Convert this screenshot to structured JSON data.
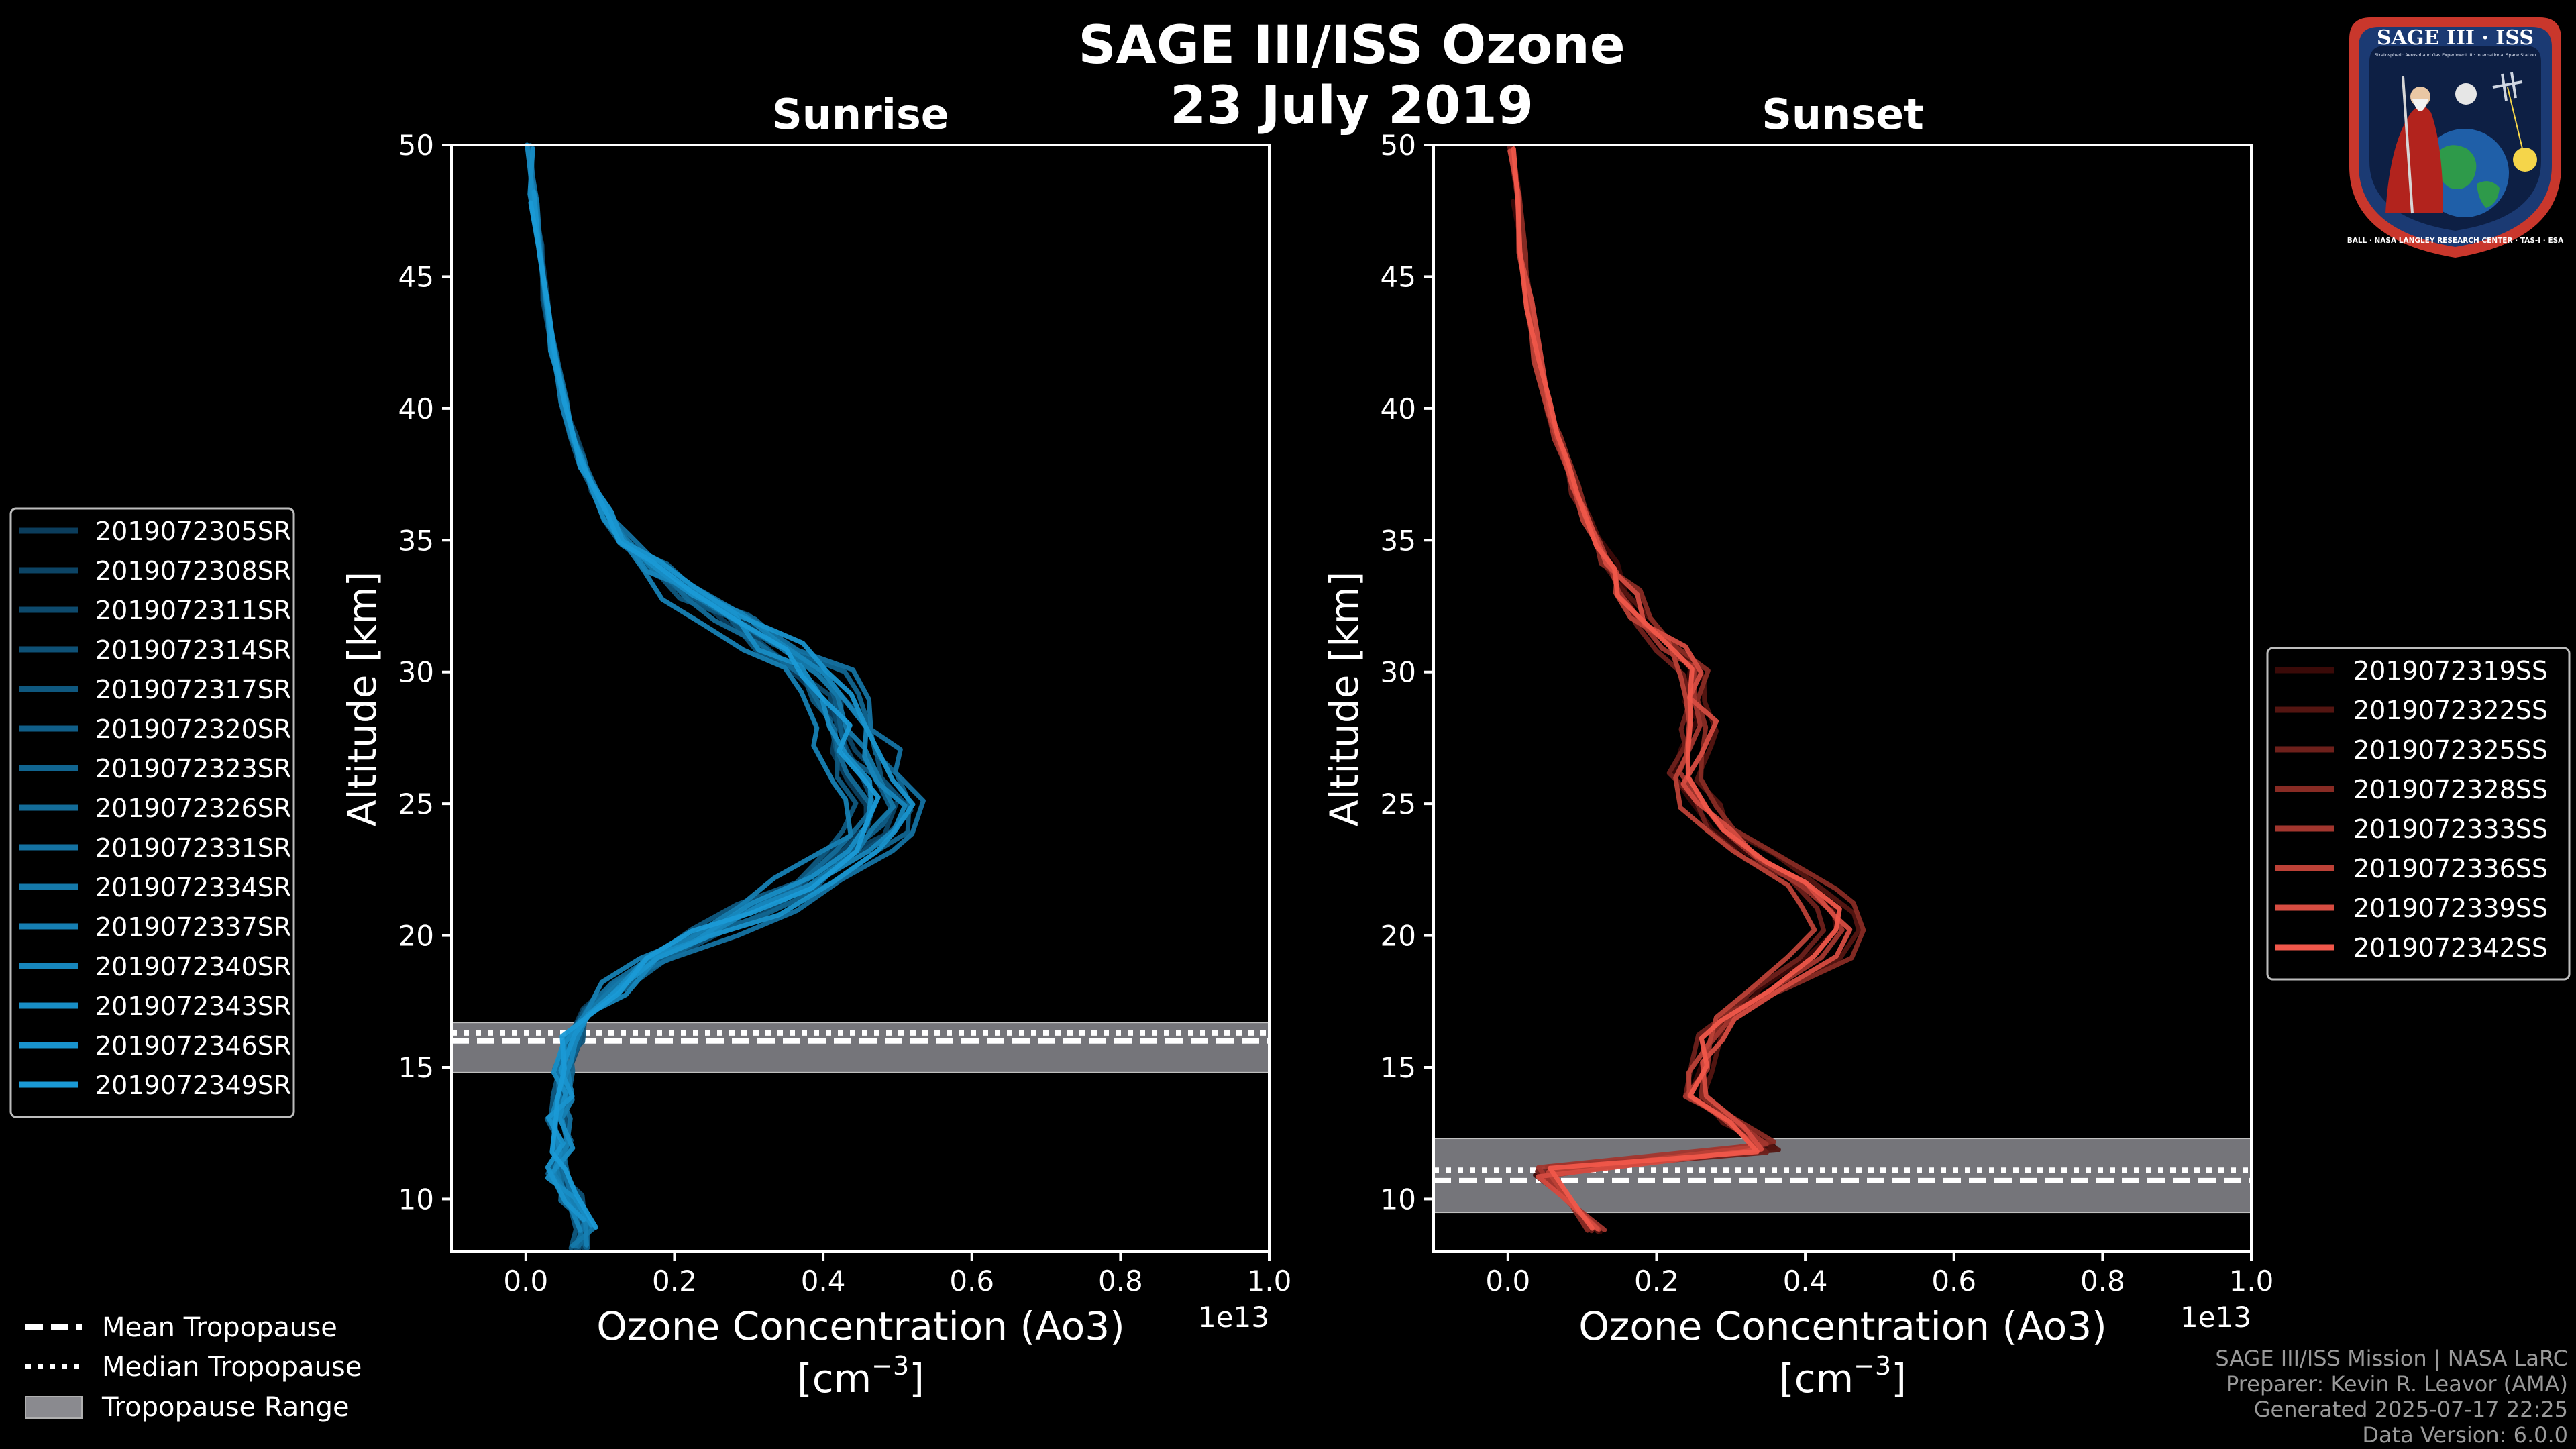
{
  "figure": {
    "title_line1": "SAGE III/ISS Ozone",
    "title_line2": "23 July 2019",
    "background": "#000000"
  },
  "badge": {
    "top_text": "SAGE III · ISS",
    "subtitle": "Stratospheric Aerosol and Gas Experiment III · International Space Station",
    "ring_text": "BALL · NASA LANGLEY RESEARCH CENTER · TAS-I · ESA"
  },
  "footer": {
    "line1": "SAGE III/ISS Mission | NASA LaRC",
    "line2": "Preparer: Kevin R. Leavor (AMA)",
    "line3": "Generated 2025-07-17 22:25",
    "line4": "Data Version: 6.0.0"
  },
  "tropo_legend": [
    {
      "label": "Mean Tropopause",
      "style": "dashed"
    },
    {
      "label": "Median Tropopause",
      "style": "dotted"
    },
    {
      "label": "Tropopause Range",
      "style": "patch"
    }
  ],
  "chart_data": [
    {
      "type": "line",
      "title": "Sunrise",
      "xlabel": "Ozone Concentration (Ao3)",
      "xunit_label": "[cm",
      "xunit_exp": "−3",
      "xunit_close": "]",
      "ylabel": "Altitude [km]",
      "xlim": [
        -0.1,
        1.0
      ],
      "ylim": [
        8,
        50
      ],
      "xticks": [
        0.0,
        0.2,
        0.4,
        0.6,
        0.8,
        1.0
      ],
      "xtick_labels": [
        "0.0",
        "0.2",
        "0.4",
        "0.6",
        "0.8",
        "1.0"
      ],
      "yticks": [
        10,
        15,
        20,
        25,
        30,
        35,
        40,
        45,
        50
      ],
      "ytick_labels": [
        "10",
        "15",
        "20",
        "25",
        "30",
        "35",
        "40",
        "45",
        "50"
      ],
      "offset_text": "1e13",
      "color_dark": "#0b3d5c",
      "color_light": "#1a9ad6",
      "tropopause": {
        "mean": 16.0,
        "median": 16.3,
        "range": [
          14.8,
          16.7
        ]
      },
      "base_profile": [
        [
          8,
          0.07
        ],
        [
          9,
          0.08
        ],
        [
          10,
          0.06
        ],
        [
          11,
          0.04
        ],
        [
          12,
          0.05
        ],
        [
          13,
          0.04
        ],
        [
          14,
          0.05
        ],
        [
          15,
          0.05
        ],
        [
          16,
          0.06
        ],
        [
          17,
          0.08
        ],
        [
          18,
          0.12
        ],
        [
          19,
          0.17
        ],
        [
          20,
          0.24
        ],
        [
          21,
          0.31
        ],
        [
          22,
          0.38
        ],
        [
          23,
          0.44
        ],
        [
          24,
          0.47
        ],
        [
          25,
          0.48
        ],
        [
          26,
          0.46
        ],
        [
          27,
          0.44
        ],
        [
          28,
          0.43
        ],
        [
          29,
          0.42
        ],
        [
          30,
          0.39
        ],
        [
          31,
          0.34
        ],
        [
          32,
          0.28
        ],
        [
          33,
          0.22
        ],
        [
          34,
          0.17
        ],
        [
          35,
          0.13
        ],
        [
          36,
          0.11
        ],
        [
          37,
          0.09
        ],
        [
          38,
          0.075
        ],
        [
          39,
          0.063
        ],
        [
          40,
          0.053
        ],
        [
          42,
          0.038
        ],
        [
          44,
          0.027
        ],
        [
          46,
          0.018
        ],
        [
          48,
          0.01
        ],
        [
          50,
          0.005
        ]
      ],
      "series": [
        {
          "name": "2019072305SR",
          "scale": 0.96,
          "jitter": 0.012
        },
        {
          "name": "2019072308SR",
          "scale": 1.02,
          "jitter": 0.015
        },
        {
          "name": "2019072311SR",
          "scale": 0.98,
          "jitter": 0.01
        },
        {
          "name": "2019072314SR",
          "scale": 1.05,
          "jitter": 0.018
        },
        {
          "name": "2019072317SR",
          "scale": 0.93,
          "jitter": 0.012
        },
        {
          "name": "2019072320SR",
          "scale": 1.0,
          "jitter": 0.014
        },
        {
          "name": "2019072323SR",
          "scale": 1.08,
          "jitter": 0.016
        },
        {
          "name": "2019072326SR",
          "scale": 0.95,
          "jitter": 0.013
        },
        {
          "name": "2019072331SR",
          "scale": 1.12,
          "jitter": 0.02
        },
        {
          "name": "2019072334SR",
          "scale": 1.01,
          "jitter": 0.011
        },
        {
          "name": "2019072337SR",
          "scale": 0.9,
          "jitter": 0.015
        },
        {
          "name": "2019072340SR",
          "scale": 1.04,
          "jitter": 0.012
        },
        {
          "name": "2019072343SR",
          "scale": 0.97,
          "jitter": 0.017
        },
        {
          "name": "2019072346SR",
          "scale": 1.06,
          "jitter": 0.013
        },
        {
          "name": "2019072349SR",
          "scale": 0.99,
          "jitter": 0.016
        }
      ]
    },
    {
      "type": "line",
      "title": "Sunset",
      "xlabel": "Ozone Concentration (Ao3)",
      "xunit_label": "[cm",
      "xunit_exp": "−3",
      "xunit_close": "]",
      "ylabel": "Altitude [km]",
      "xlim": [
        -0.1,
        1.0
      ],
      "ylim": [
        8,
        50
      ],
      "xticks": [
        0.0,
        0.2,
        0.4,
        0.6,
        0.8,
        1.0
      ],
      "xtick_labels": [
        "0.0",
        "0.2",
        "0.4",
        "0.6",
        "0.8",
        "1.0"
      ],
      "yticks": [
        10,
        15,
        20,
        25,
        30,
        35,
        40,
        45,
        50
      ],
      "ytick_labels": [
        "10",
        "15",
        "20",
        "25",
        "30",
        "35",
        "40",
        "45",
        "50"
      ],
      "offset_text": "1e13",
      "color_dark": "#3a0a08",
      "color_light": "#f0574a",
      "tropopause": {
        "mean": 10.7,
        "median": 11.1,
        "range": [
          9.5,
          12.3
        ]
      },
      "base_profile": [
        [
          9,
          0.12
        ],
        [
          10,
          0.08
        ],
        [
          11,
          0.05
        ],
        [
          12,
          0.35
        ],
        [
          13,
          0.3
        ],
        [
          14,
          0.25
        ],
        [
          15,
          0.26
        ],
        [
          16,
          0.27
        ],
        [
          17,
          0.3
        ],
        [
          18,
          0.36
        ],
        [
          19,
          0.42
        ],
        [
          20,
          0.45
        ],
        [
          21,
          0.44
        ],
        [
          22,
          0.4
        ],
        [
          23,
          0.34
        ],
        [
          24,
          0.29
        ],
        [
          25,
          0.26
        ],
        [
          26,
          0.24
        ],
        [
          27,
          0.25
        ],
        [
          28,
          0.26
        ],
        [
          29,
          0.25
        ],
        [
          30,
          0.24
        ],
        [
          31,
          0.22
        ],
        [
          32,
          0.19
        ],
        [
          33,
          0.16
        ],
        [
          34,
          0.14
        ],
        [
          35,
          0.12
        ],
        [
          36,
          0.105
        ],
        [
          37,
          0.09
        ],
        [
          38,
          0.078
        ],
        [
          39,
          0.066
        ],
        [
          40,
          0.056
        ],
        [
          42,
          0.04
        ],
        [
          44,
          0.028
        ],
        [
          46,
          0.019
        ],
        [
          48,
          0.011
        ],
        [
          50,
          0.006
        ]
      ],
      "series": [
        {
          "name": "2019072319SS",
          "scale": 0.97,
          "jitter": 0.014
        },
        {
          "name": "2019072322SS",
          "scale": 1.04,
          "jitter": 0.016
        },
        {
          "name": "2019072325SS",
          "scale": 0.94,
          "jitter": 0.012
        },
        {
          "name": "2019072328SS",
          "scale": 1.06,
          "jitter": 0.018
        },
        {
          "name": "2019072333SS",
          "scale": 1.0,
          "jitter": 0.013
        },
        {
          "name": "2019072336SS",
          "scale": 0.92,
          "jitter": 0.015
        },
        {
          "name": "2019072339SS",
          "scale": 1.03,
          "jitter": 0.017
        },
        {
          "name": "2019072342SS",
          "scale": 0.99,
          "jitter": 0.014
        }
      ]
    }
  ]
}
